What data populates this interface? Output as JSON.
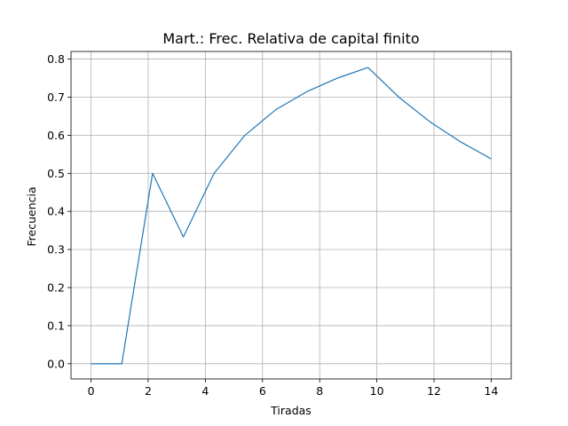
{
  "chart_data": {
    "type": "line",
    "title": "Mart.: Frec. Relativa de capital finito",
    "xlabel": "Tiradas",
    "ylabel": "Frecuencia",
    "xlim": [
      -0.7,
      14.7
    ],
    "ylim": [
      -0.04,
      0.82
    ],
    "xticks": [
      0,
      2,
      4,
      6,
      8,
      10,
      12,
      14
    ],
    "yticks": [
      0.0,
      0.1,
      0.2,
      0.3,
      0.4,
      0.5,
      0.6,
      0.7,
      0.8
    ],
    "grid": true,
    "series": [
      {
        "color": "#1f77b4",
        "x": [
          0,
          1.077,
          2.154,
          3.231,
          4.308,
          5.385,
          6.462,
          7.538,
          8.615,
          9.692,
          10.769,
          11.846,
          12.923,
          14.0
        ],
        "y": [
          0.0,
          0.0,
          0.5,
          0.333,
          0.5,
          0.6,
          0.667,
          0.714,
          0.75,
          0.778,
          0.7,
          0.636,
          0.583,
          0.538
        ]
      }
    ]
  }
}
